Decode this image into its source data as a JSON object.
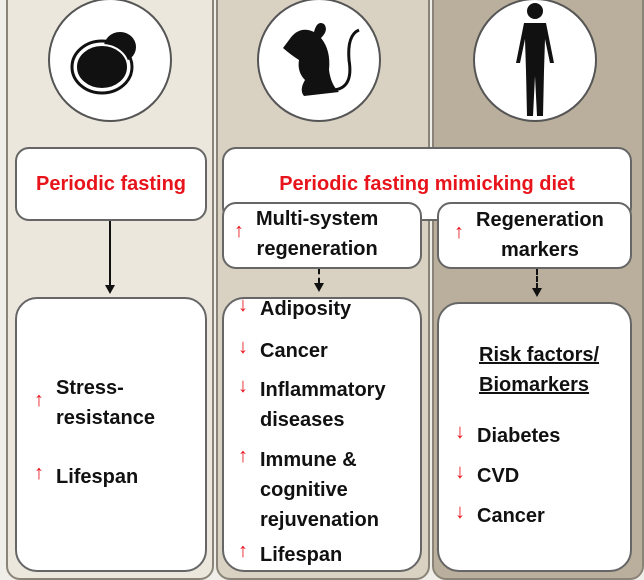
{
  "colors": {
    "accent": "#e8141c",
    "col1": "#ebe7dc",
    "col2": "#d9d2c3",
    "col3": "#b9af9c"
  },
  "icons": {
    "yeast": "yeast-icon",
    "mouse": "mouse-icon",
    "human": "human-icon",
    "up": "up-arrow-icon",
    "down": "down-arrow-icon"
  },
  "arrows": {
    "up": "↑",
    "down": "↓"
  },
  "col1": {
    "intervention": "Periodic fasting",
    "outcomes": [
      {
        "dir": "up",
        "label": "Stress-\nresistance"
      },
      {
        "dir": "up",
        "label": "Lifespan"
      }
    ]
  },
  "shared": {
    "intervention": "Periodic fasting mimicking diet"
  },
  "col2": {
    "mid": "Multi-system\nregeneration",
    "outcomes": [
      {
        "dir": "down",
        "label": "Adiposity"
      },
      {
        "dir": "down",
        "label": "Cancer"
      },
      {
        "dir": "down",
        "label": "Inflammatory\ndiseases"
      },
      {
        "dir": "up",
        "label": "Immune &\ncognitive\nrejuvenation"
      },
      {
        "dir": "up",
        "label": "Lifespan"
      }
    ]
  },
  "col3": {
    "mid": "Regeneration\nmarkers",
    "heading": "Risk factors/\nBiomarkers",
    "outcomes": [
      {
        "dir": "down",
        "label": "Diabetes"
      },
      {
        "dir": "down",
        "label": "CVD"
      },
      {
        "dir": "down",
        "label": "Cancer"
      }
    ]
  }
}
